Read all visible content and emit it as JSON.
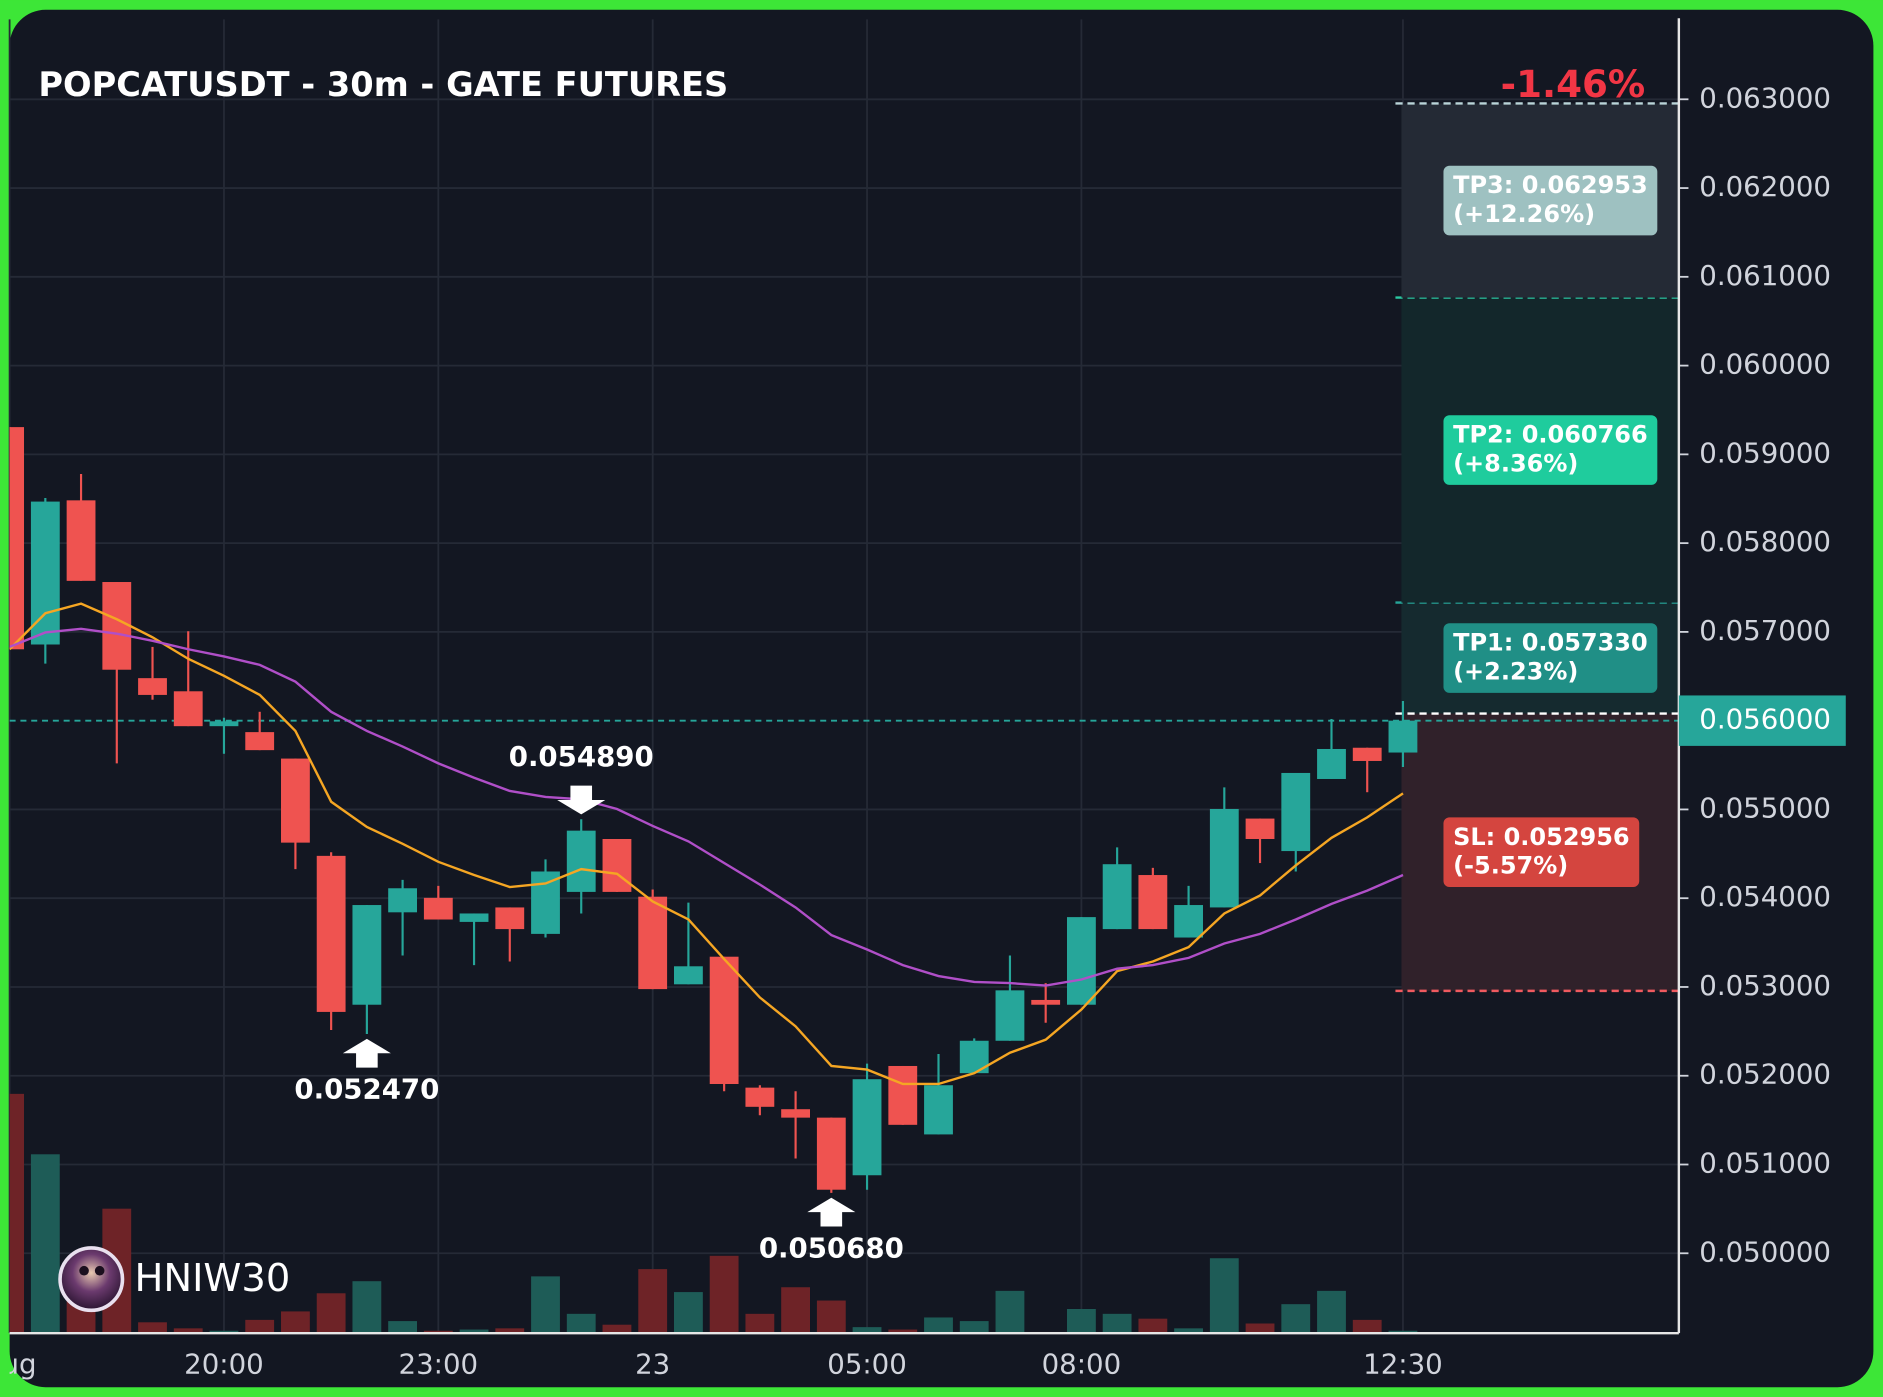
{
  "chart_data": {
    "type": "candlestick",
    "title": "POPCATUSDT - 30m - GATE FUTURES",
    "change": {
      "value": -1.46,
      "label": "-1.46%"
    },
    "watermark": "HNIW30",
    "categories": [
      "Aug",
      null,
      null,
      null,
      null,
      null,
      "20:00",
      null,
      null,
      null,
      null,
      null,
      "23:00",
      null,
      null,
      null,
      null,
      null,
      "23",
      null,
      null,
      null,
      null,
      null,
      "05:00",
      null,
      null,
      null,
      null,
      null,
      "08:00",
      null,
      null,
      null,
      null,
      null,
      null,
      null,
      null,
      "12:30"
    ],
    "open": [
      0.059307,
      0.056858,
      0.058482,
      0.057562,
      0.056479,
      0.056331,
      0.055938,
      0.055871,
      0.055573,
      0.054477,
      0.0528,
      0.053841,
      0.054004,
      0.053733,
      0.053896,
      0.053598,
      0.054071,
      0.054667,
      0.054017,
      0.05303,
      0.053341,
      0.051866,
      0.051623,
      0.051528,
      0.050879,
      0.05211,
      0.051339,
      0.052029,
      0.052394,
      0.052854,
      0.0528,
      0.053652,
      0.054261,
      0.053557,
      0.053896,
      0.054897,
      0.054531,
      0.055343,
      0.055695,
      0.055641
    ],
    "high": [
      0.059307,
      0.058509,
      0.058779,
      0.057562,
      0.056831,
      0.057007,
      0.056033,
      0.0561,
      0.055573,
      0.054518,
      0.053923,
      0.054207,
      0.054139,
      0.053828,
      0.053896,
      0.054437,
      0.05489,
      0.054667,
      0.054098,
      0.05395,
      0.053341,
      0.051893,
      0.051826,
      0.051528,
      0.052137,
      0.05211,
      0.052245,
      0.052421,
      0.053354,
      0.053043,
      0.053787,
      0.054572,
      0.054342,
      0.054139,
      0.055248,
      0.054897,
      0.055411,
      0.056019,
      0.055695,
      0.056222
    ],
    "low": [
      0.056804,
      0.056642,
      0.057575,
      0.055519,
      0.056236,
      0.055938,
      0.055627,
      0.055668,
      0.054328,
      0.052516,
      0.05247,
      0.053354,
      0.05376,
      0.053246,
      0.053287,
      0.053557,
      0.053828,
      0.054071,
      0.052976,
      0.05303,
      0.051826,
      0.051555,
      0.051068,
      0.05068,
      0.050716,
      0.051447,
      0.051339,
      0.052029,
      0.052394,
      0.052597,
      0.0528,
      0.053652,
      0.053652,
      0.053557,
      0.053896,
      0.054396,
      0.054301,
      0.055343,
      0.055194,
      0.055478
    ],
    "close": [
      0.056804,
      0.058468,
      0.057575,
      0.056574,
      0.05629,
      0.055938,
      0.055993,
      0.055668,
      0.054626,
      0.052719,
      0.053923,
      0.054112,
      0.05376,
      0.053828,
      0.053652,
      0.054301,
      0.054761,
      0.054071,
      0.052976,
      0.053233,
      0.051907,
      0.05165,
      0.051528,
      0.050716,
      0.051961,
      0.051447,
      0.051893,
      0.052394,
      0.052962,
      0.0528,
      0.053787,
      0.054383,
      0.053652,
      0.053923,
      0.055005,
      0.054667,
      0.055411,
      0.055681,
      0.055546,
      0.056
    ],
    "volume": [
      198,
      148,
      60,
      103,
      9,
      4,
      2,
      11,
      18,
      33,
      43,
      10,
      2,
      3,
      4,
      47,
      16,
      7,
      53,
      34,
      64,
      16,
      38,
      27,
      5,
      3,
      13,
      10,
      35,
      1,
      20,
      16,
      12,
      4,
      62,
      8,
      24,
      35,
      11,
      2
    ],
    "volume_ylim": [
      0,
      250
    ],
    "up_color": "#26a69a",
    "down_color": "#ef5350",
    "volume_up_color": "#1e5c57",
    "volume_down_color": "#6e2327",
    "lines": [
      {
        "color": "#f5a623",
        "values": [
          0.056804,
          0.05721,
          0.057318,
          0.057142,
          0.056939,
          0.056696,
          0.056506,
          0.05629,
          0.055884,
          0.055086,
          0.054802,
          0.054613,
          0.05441,
          0.054261,
          0.054126,
          0.054166,
          0.054328,
          0.054274,
          0.053963,
          0.05376,
          0.053314,
          0.052881,
          0.052556,
          0.05211,
          0.052069,
          0.051907,
          0.051907,
          0.052029,
          0.052259,
          0.052407,
          0.052746,
          0.053179,
          0.053287,
          0.053449,
          0.053828,
          0.054031,
          0.054369,
          0.05468,
          0.05491,
          0.055181
        ]
      },
      {
        "color": "#b04fc8",
        "values": [
          0.056831,
          0.056994,
          0.057034,
          0.05698,
          0.056899,
          0.056804,
          0.056723,
          0.056628,
          0.056439,
          0.0561,
          0.055884,
          0.055708,
          0.055519,
          0.055357,
          0.055208,
          0.05514,
          0.055113,
          0.055005,
          0.054815,
          0.05464,
          0.054396,
          0.054153,
          0.053896,
          0.053584,
          0.053422,
          0.053246,
          0.053124,
          0.053057,
          0.053043,
          0.053016,
          0.053084,
          0.053206,
          0.053246,
          0.053327,
          0.05349,
          0.053598,
          0.05376,
          0.053936,
          0.054085,
          0.054261
        ]
      }
    ],
    "high_marks": [
      {
        "index": 16,
        "value": 0.05489,
        "label": "0.054890"
      }
    ],
    "low_marks": [
      {
        "index": 10,
        "value": 0.05247,
        "label": "0.052470"
      },
      {
        "index": 23,
        "value": 0.05068,
        "label": "0.050680"
      }
    ],
    "ylim": [
      0.0491,
      0.0639
    ],
    "yticks": [
      {
        "value": 0.063,
        "label": "0.063000"
      },
      {
        "value": 0.062,
        "label": "0.062000"
      },
      {
        "value": 0.061,
        "label": "0.061000"
      },
      {
        "value": 0.06,
        "label": "0.060000"
      },
      {
        "value": 0.059,
        "label": "0.059000"
      },
      {
        "value": 0.058,
        "label": "0.058000"
      },
      {
        "value": 0.057,
        "label": "0.057000"
      },
      {
        "value": 0.055,
        "label": "0.055000"
      },
      {
        "value": 0.054,
        "label": "0.054000"
      },
      {
        "value": 0.053,
        "label": "0.053000"
      },
      {
        "value": 0.052,
        "label": "0.052000"
      },
      {
        "value": 0.051,
        "label": "0.051000"
      },
      {
        "value": 0.05,
        "label": "0.050000"
      }
    ],
    "price_label": {
      "value": 0.056,
      "label": "0.056000"
    },
    "grid": true,
    "entry": 0.05608,
    "targets": [
      {
        "value": 0.05733,
        "label": "TP1: 0.057330",
        "pct": "(+2.23%)",
        "box_color": "#208f86",
        "line_color": "#26a69a",
        "zone_color": "#152a2f"
      },
      {
        "value": 0.060766,
        "label": "TP2: 0.060766",
        "pct": "(+8.36%)",
        "box_color": "#1fcc9d",
        "line_color": "#2bc9a3",
        "zone_color": "#13272b"
      },
      {
        "value": 0.062953,
        "label": "TP3: 0.062953",
        "pct": "(+12.26%)",
        "box_color": "#9ec1c1",
        "line_color": "#b9d4d8",
        "zone_color": "#242a35"
      }
    ],
    "stop": {
      "value": 0.052956,
      "label": "SL: 0.052956",
      "pct": "(-5.57%)",
      "box_color": "#d4453f",
      "line_color": "#f05a5f",
      "zone_color": "#30212a"
    }
  }
}
